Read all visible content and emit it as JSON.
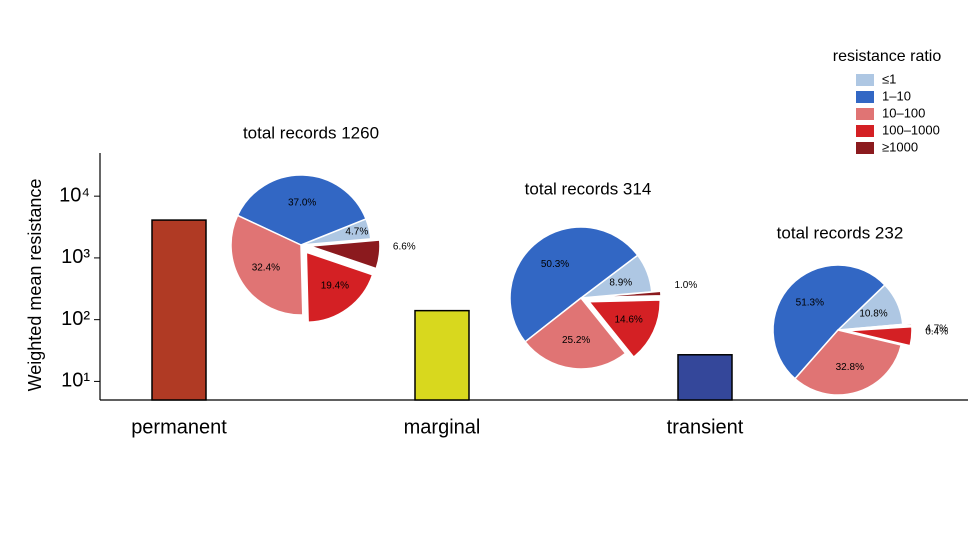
{
  "chart_data": [
    {
      "type": "bar",
      "ylabel": "Weighted mean resistance",
      "categories": [
        "permanent",
        "marginal",
        "transient"
      ],
      "values": [
        4100,
        140,
        27
      ],
      "colors": [
        "#b03a24",
        "#d8d81e",
        "#34479a"
      ],
      "log": true,
      "ylim": [
        5,
        50000
      ],
      "yticks": [
        {
          "value": 10,
          "label": "10¹"
        },
        {
          "value": 100,
          "label": "10²"
        },
        {
          "value": 1000,
          "label": "10³"
        },
        {
          "value": 10000,
          "label": "10⁴"
        }
      ]
    },
    {
      "type": "pie",
      "legend_title": "resistance ratio",
      "categories": [
        "≤1",
        "1–10",
        "10–100",
        "100–1000",
        "≥1000"
      ],
      "colors": [
        "#aec7e3",
        "#3267c4",
        "#e07474",
        "#d42024",
        "#8b1a1e"
      ],
      "explode": [
        false,
        false,
        false,
        true,
        true
      ],
      "pies": [
        {
          "title": "total records 1260",
          "values": [
            4.7,
            37.0,
            32.4,
            19.4,
            6.6
          ],
          "value_labels": [
            "4.7%",
            "37.0%",
            "32.4%",
            "19.4%",
            "6.6%"
          ]
        },
        {
          "title": "total records 314",
          "values": [
            8.9,
            50.3,
            25.2,
            14.6,
            1.0
          ],
          "value_labels": [
            "8.9%",
            "50.3%",
            "25.2%",
            "14.6%",
            "1.0%"
          ]
        },
        {
          "title": "total records 232",
          "values": [
            10.8,
            51.3,
            32.8,
            4.7,
            0.4
          ],
          "value_labels": [
            "10.8%",
            "51.3%",
            "32.8%",
            "4.7%",
            "0.4%"
          ]
        }
      ]
    }
  ]
}
